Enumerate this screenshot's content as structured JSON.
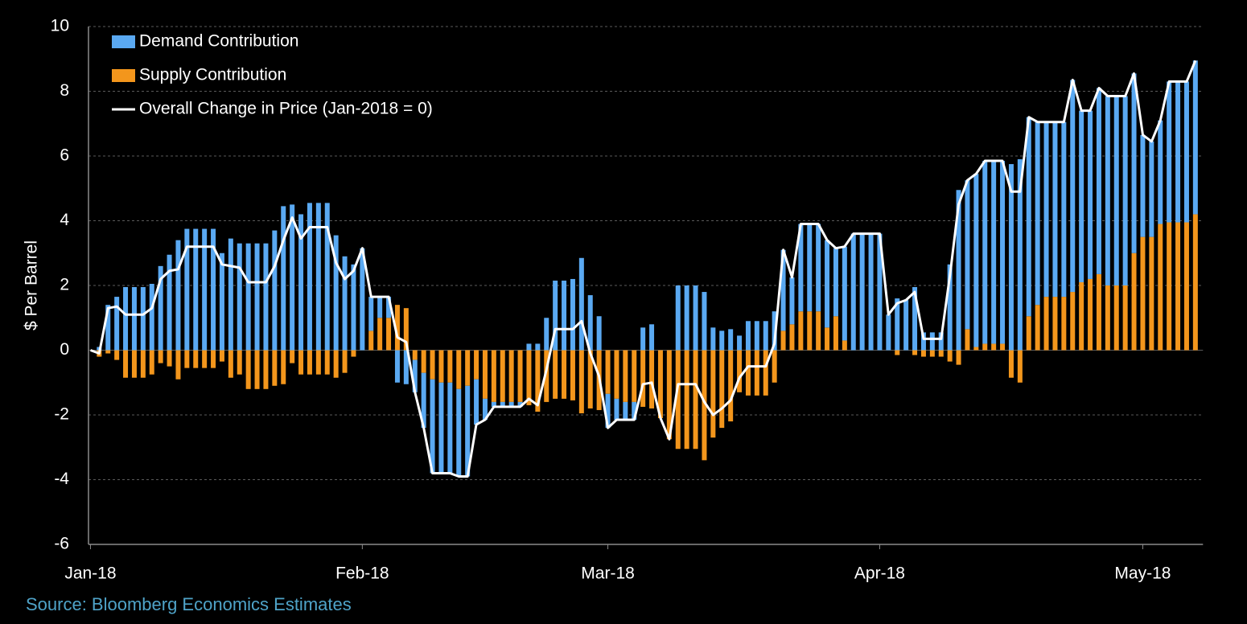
{
  "chart_data": {
    "type": "bar",
    "y_label": "$ Per Barrel",
    "source": "Source: Bloomberg Economics Estimates",
    "categories": [
      "Jan-18",
      null,
      null,
      null,
      null,
      null,
      null,
      null,
      null,
      null,
      null,
      null,
      null,
      null,
      null,
      null,
      null,
      null,
      null,
      null,
      null,
      null,
      null,
      null,
      null,
      null,
      null,
      null,
      null,
      null,
      null,
      "Feb-18",
      null,
      null,
      null,
      null,
      null,
      null,
      null,
      null,
      null,
      null,
      null,
      null,
      null,
      null,
      null,
      null,
      null,
      null,
      null,
      null,
      null,
      null,
      null,
      null,
      null,
      null,
      null,
      "Mar-18",
      null,
      null,
      null,
      null,
      null,
      null,
      null,
      null,
      null,
      null,
      null,
      null,
      null,
      null,
      null,
      null,
      null,
      null,
      null,
      null,
      null,
      null,
      null,
      null,
      null,
      null,
      null,
      null,
      null,
      null,
      "Apr-18",
      null,
      null,
      null,
      null,
      null,
      null,
      null,
      null,
      null,
      null,
      null,
      null,
      null,
      null,
      null,
      null,
      null,
      null,
      null,
      null,
      null,
      null,
      null,
      null,
      null,
      null,
      null,
      null,
      null,
      "May-18",
      null,
      null,
      null,
      null,
      null,
      null
    ],
    "series": [
      {
        "name": "Demand Contribution",
        "color": "#5aa9f2",
        "values": [
          0,
          0.1,
          1.4,
          1.65,
          1.95,
          1.95,
          1.95,
          2.05,
          2.6,
          2.95,
          3.4,
          3.75,
          3.75,
          3.75,
          3.75,
          3.0,
          3.45,
          3.3,
          3.3,
          3.3,
          3.3,
          3.7,
          4.45,
          4.5,
          4.2,
          4.55,
          4.55,
          4.55,
          3.55,
          2.9,
          2.65,
          3.15,
          1.05,
          0.65,
          0.65,
          -1.0,
          -1.05,
          -1.0,
          -1.7,
          -2.9,
          -2.8,
          -2.8,
          -2.7,
          -2.8,
          -1.4,
          -0.65,
          -0.15,
          -0.15,
          -0.15,
          -0.15,
          0.2,
          0.2,
          1.0,
          2.15,
          2.15,
          2.2,
          2.85,
          1.7,
          1.05,
          -1.05,
          -0.65,
          -0.55,
          -0.55,
          0.7,
          0.8,
          0,
          0,
          2.0,
          2.0,
          2.0,
          1.8,
          0.7,
          0.6,
          0.65,
          0.45,
          0.9,
          0.9,
          0.9,
          1.2,
          2.5,
          1.45,
          2.7,
          2.7,
          2.7,
          2.7,
          2.1,
          2.9,
          3.6,
          3.6,
          3.6,
          3.6,
          1.1,
          1.6,
          1.55,
          1.95,
          0.55,
          0.55,
          0.55,
          2.65,
          4.95,
          4.6,
          5.35,
          5.65,
          5.65,
          5.65,
          5.75,
          5.9,
          6.15,
          5.65,
          5.4,
          5.4,
          5.4,
          6.55,
          5.3,
          5.2,
          5.75,
          5.85,
          5.85,
          5.85,
          5.55,
          3.15,
          2.95,
          3.2,
          4.35,
          4.35,
          4.35,
          4.75
        ]
      },
      {
        "name": "Supply Contribution",
        "color": "#f3961c",
        "values": [
          0,
          -0.2,
          -0.1,
          -0.3,
          -0.85,
          -0.85,
          -0.85,
          -0.75,
          -0.4,
          -0.5,
          -0.9,
          -0.55,
          -0.55,
          -0.55,
          -0.55,
          -0.35,
          -0.85,
          -0.75,
          -1.2,
          -1.2,
          -1.2,
          -1.1,
          -1.05,
          -0.4,
          -0.75,
          -0.75,
          -0.75,
          -0.75,
          -0.85,
          -0.7,
          -0.2,
          0,
          0.6,
          1.0,
          1.0,
          1.4,
          1.3,
          -0.3,
          -0.7,
          -0.9,
          -1.0,
          -1.0,
          -1.2,
          -1.1,
          -0.9,
          -1.5,
          -1.6,
          -1.6,
          -1.6,
          -1.6,
          -1.7,
          -1.9,
          -1.6,
          -1.5,
          -1.5,
          -1.55,
          -1.95,
          -1.8,
          -1.85,
          -1.35,
          -1.5,
          -1.6,
          -1.6,
          -1.75,
          -1.8,
          -2.1,
          -2.75,
          -3.05,
          -3.05,
          -3.05,
          -3.4,
          -2.7,
          -2.4,
          -2.2,
          -1.3,
          -1.4,
          -1.4,
          -1.4,
          -1.0,
          0.6,
          0.8,
          1.2,
          1.2,
          1.2,
          0.7,
          1.05,
          0.3,
          0,
          0,
          0,
          0,
          0,
          -0.15,
          0,
          -0.15,
          -0.2,
          -0.2,
          -0.2,
          -0.35,
          -0.45,
          0.65,
          0.1,
          0.2,
          0.2,
          0.2,
          -0.85,
          -1.0,
          1.05,
          1.4,
          1.65,
          1.65,
          1.65,
          1.8,
          2.1,
          2.2,
          2.35,
          2.0,
          2.0,
          2.0,
          3.0,
          3.5,
          3.5,
          3.9,
          3.95,
          3.95,
          3.95,
          4.2
        ]
      },
      {
        "name": "Overall Change in Price (Jan-2018 = 0)",
        "color": "#ffffff",
        "type": "line",
        "values": [
          0,
          -0.1,
          1.3,
          1.35,
          1.1,
          1.1,
          1.1,
          1.3,
          2.2,
          2.45,
          2.5,
          3.2,
          3.2,
          3.2,
          3.2,
          2.65,
          2.6,
          2.55,
          2.1,
          2.1,
          2.1,
          2.6,
          3.4,
          4.1,
          3.45,
          3.8,
          3.8,
          3.8,
          2.7,
          2.2,
          2.45,
          3.15,
          1.65,
          1.65,
          1.65,
          0.4,
          0.25,
          -1.3,
          -2.4,
          -3.8,
          -3.8,
          -3.8,
          -3.9,
          -3.9,
          -2.3,
          -2.15,
          -1.75,
          -1.75,
          -1.75,
          -1.75,
          -1.5,
          -1.7,
          -0.6,
          0.65,
          0.65,
          0.65,
          0.9,
          -0.1,
          -0.8,
          -2.4,
          -2.15,
          -2.15,
          -2.15,
          -1.05,
          -1.0,
          -2.1,
          -2.75,
          -1.05,
          -1.05,
          -1.05,
          -1.6,
          -2.0,
          -1.8,
          -1.55,
          -0.85,
          -0.5,
          -0.5,
          -0.5,
          0.2,
          3.1,
          2.25,
          3.9,
          3.9,
          3.9,
          3.4,
          3.15,
          3.2,
          3.6,
          3.6,
          3.6,
          3.6,
          1.1,
          1.45,
          1.55,
          1.8,
          0.35,
          0.35,
          0.35,
          2.3,
          4.5,
          5.25,
          5.45,
          5.85,
          5.85,
          5.85,
          4.9,
          4.9,
          7.2,
          7.05,
          7.05,
          7.05,
          7.05,
          8.35,
          7.4,
          7.4,
          8.1,
          7.85,
          7.85,
          7.85,
          8.55,
          6.65,
          6.45,
          7.1,
          8.3,
          8.3,
          8.3,
          8.95
        ]
      }
    ],
    "ylim": [
      -6,
      10
    ],
    "yticks": [
      -6,
      -4,
      -2,
      0,
      2,
      4,
      6,
      8,
      10
    ],
    "grid": true,
    "legend": "top-left"
  }
}
